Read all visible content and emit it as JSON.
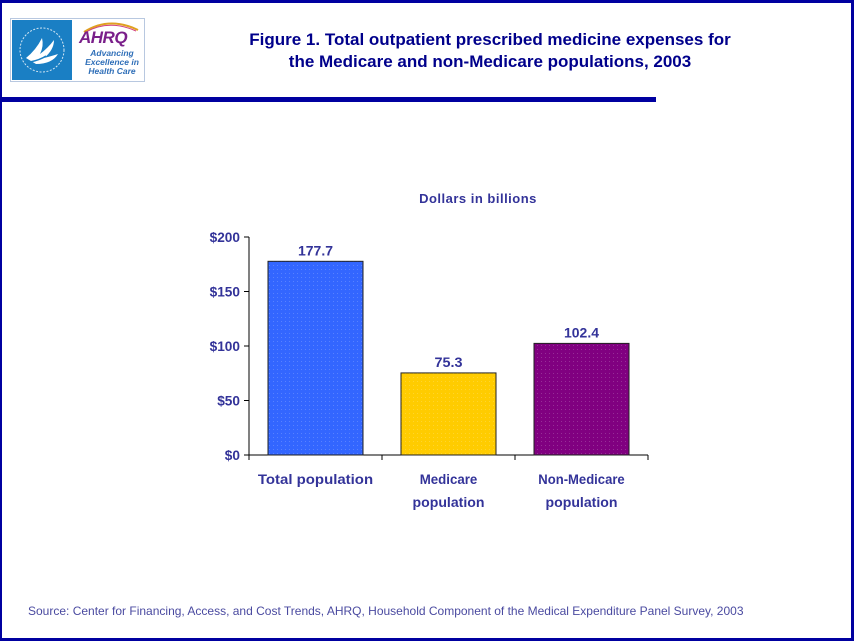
{
  "header": {
    "logo_left": "HHS eagle logo",
    "logo_brand": "AHRQ",
    "logo_tagline": [
      "Advancing",
      "Excellence in",
      "Health Care"
    ],
    "title_line1": "Figure 1. Total outpatient prescribed medicine expenses for",
    "title_line2": "the Medicare and non-Medicare populations, 2003"
  },
  "colors": {
    "frame": "#0000a0",
    "title": "#00008b",
    "axis_text": "#333399"
  },
  "chart_data": {
    "type": "bar",
    "title": "Figure 1. Total outpatient prescribed medicine expenses for the Medicare and non-Medicare populations, 2003",
    "subtitle": "Dollars in billions",
    "xlabel": "",
    "ylabel": "",
    "categories": [
      {
        "lines": [
          "Total population"
        ]
      },
      {
        "lines": [
          "Medicare",
          "population"
        ]
      },
      {
        "lines": [
          "Non-Medicare",
          "population"
        ]
      }
    ],
    "values": [
      177.7,
      75.3,
      102.4
    ],
    "data_labels": [
      "177.7",
      "75.3",
      "102.4"
    ],
    "bar_colors": [
      "#3366ff",
      "#ffcc00",
      "#800080"
    ],
    "ylim": [
      0,
      200
    ],
    "yticks": [
      0,
      50,
      100,
      150,
      200
    ],
    "ytick_labels": [
      "$0",
      "$50",
      "$100",
      "$150",
      "$200"
    ],
    "grid": false,
    "legend": "none"
  },
  "footer": {
    "source": "Source: Center for Financing, Access, and Cost Trends, AHRQ, Household Component of the Medical Expenditure Panel Survey, 2003"
  }
}
